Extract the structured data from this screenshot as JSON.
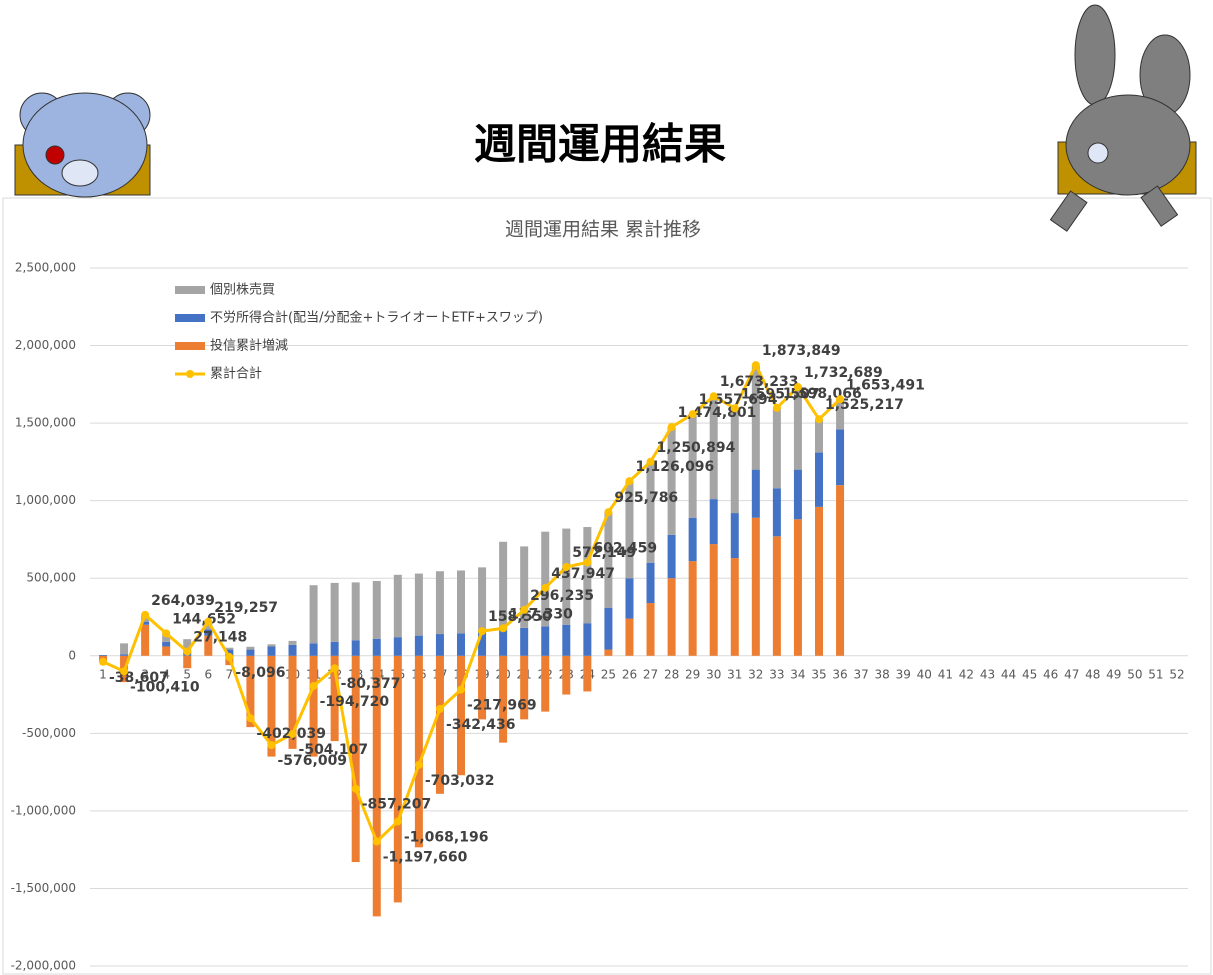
{
  "header": {
    "title": "週間運用結果"
  },
  "chart_data": {
    "type": "bar",
    "stacked": true,
    "title": "週間運用結果  累計推移",
    "categories": [
      1,
      2,
      3,
      4,
      5,
      6,
      7,
      8,
      9,
      10,
      11,
      12,
      13,
      14,
      15,
      16,
      17,
      18,
      19,
      20,
      21,
      22,
      23,
      24,
      25,
      26,
      27,
      28,
      29,
      30,
      31,
      32,
      33,
      34,
      35,
      36,
      37,
      38,
      39,
      40,
      41,
      42,
      43,
      44,
      45,
      46,
      47,
      48,
      49,
      50,
      51,
      52
    ],
    "series": [
      {
        "name": "個別株売買",
        "type": "bar",
        "color": "#a5a5a5",
        "values": [
          0,
          70000,
          44000,
          55000,
          77000,
          50000,
          12000,
          18000,
          14000,
          26000,
          375000,
          380000,
          373000,
          372000,
          402000,
          400000,
          405000,
          405000,
          410000,
          565000,
          525000,
          610000,
          620000,
          620000,
          615000,
          625000,
          650000,
          695000,
          670000,
          660000,
          675000,
          675000,
          520000,
          530000,
          215000,
          195000,
          null,
          null,
          null,
          null,
          null,
          null,
          null,
          null,
          null,
          null,
          null,
          null,
          null,
          null,
          null,
          null
        ]
      },
      {
        "name": "不労所得合計(配当/分配金+トライオートETF+スワップ)",
        "type": "bar",
        "color": "#4472c4",
        "values": [
          5000,
          10000,
          20000,
          30000,
          30000,
          40000,
          40000,
          40000,
          60000,
          70000,
          80000,
          90000,
          100000,
          110000,
          120000,
          130000,
          140000,
          145000,
          160000,
          170000,
          180000,
          190000,
          200000,
          210000,
          270000,
          260000,
          260000,
          280000,
          280000,
          290000,
          290000,
          310000,
          310000,
          320000,
          350000,
          360000,
          null,
          null,
          null,
          null,
          null,
          null,
          null,
          null,
          null,
          null,
          null,
          null,
          null,
          null,
          null,
          null
        ]
      },
      {
        "name": "投信累計増減",
        "type": "bar",
        "color": "#ed7d31",
        "values": [
          -40000,
          -170000,
          200000,
          60000,
          -80000,
          130000,
          -60000,
          -460000,
          -650000,
          -600000,
          -650000,
          -550000,
          -1330000,
          -1680000,
          -1590000,
          -1235000,
          -890000,
          -770000,
          -410000,
          -560000,
          -410000,
          -360000,
          -250000,
          -230000,
          40000,
          240000,
          340000,
          500000,
          610000,
          720000,
          630000,
          890000,
          770000,
          880000,
          960000,
          1100000,
          null,
          null,
          null,
          null,
          null,
          null,
          null,
          null,
          null,
          null,
          null,
          null,
          null,
          null,
          null,
          null
        ]
      },
      {
        "name": "累計合計",
        "type": "line",
        "color": "#ffc000",
        "values": [
          -38607,
          -100410,
          264039,
          144652,
          27148,
          219257,
          -8096,
          -402039,
          -576009,
          -504107,
          -194720,
          -80377,
          -857207,
          -1197660,
          -1068196,
          -703032,
          -342436,
          -217969,
          158550,
          177330,
          296235,
          437947,
          572149,
          602459,
          925786,
          1126096,
          1250894,
          1474801,
          1557694,
          1673233,
          1595507,
          1873849,
          1598066,
          1732689,
          1525217,
          1653491,
          null,
          null,
          null,
          null,
          null,
          null,
          null,
          null,
          null,
          null,
          null,
          null,
          null,
          null,
          null,
          null
        ],
        "value_labels": [
          "-38,607",
          "-100,410",
          "264,039",
          "144,652",
          "27,148",
          "219,257",
          "-8,096",
          "-402,039",
          "-576,009",
          "-504,107",
          "-194,720",
          "-80,377",
          "-857,207",
          "-1,197,660",
          "-1,068,196",
          "-703,032",
          "-342,436",
          "-217,969",
          "158,550",
          "177,330",
          "296,235",
          "437,947",
          "572,149",
          "602,459",
          "925,786",
          "1,126,096",
          "1,250,894",
          "1,474,801",
          "1,557,694",
          "1,673,233",
          "1,595,507",
          "1,873,849",
          "1,598,066",
          "1,732,689",
          "1,525,217",
          "1,653,491",
          null,
          null,
          null,
          null,
          null,
          null,
          null,
          null,
          null,
          null,
          null,
          null,
          null,
          null,
          null,
          null
        ]
      }
    ],
    "ylim": [
      -2000000,
      2500000
    ],
    "yticks": [
      {
        "value": -2000000,
        "label": "-2,000,000"
      },
      {
        "value": -1500000,
        "label": "-1,500,000"
      },
      {
        "value": -1000000,
        "label": "-1,000,000"
      },
      {
        "value": -500000,
        "label": "-500,000"
      },
      0,
      {
        "value": 500000,
        "label": "500,000"
      },
      {
        "value": 1000000,
        "label": "1,000,000"
      },
      {
        "value": 1500000,
        "label": "1,500,000"
      },
      {
        "value": 2000000,
        "label": "2,000,000"
      },
      {
        "value": 2500000,
        "label": "2,500,000"
      }
    ],
    "grid": true,
    "legend": "top-left"
  }
}
